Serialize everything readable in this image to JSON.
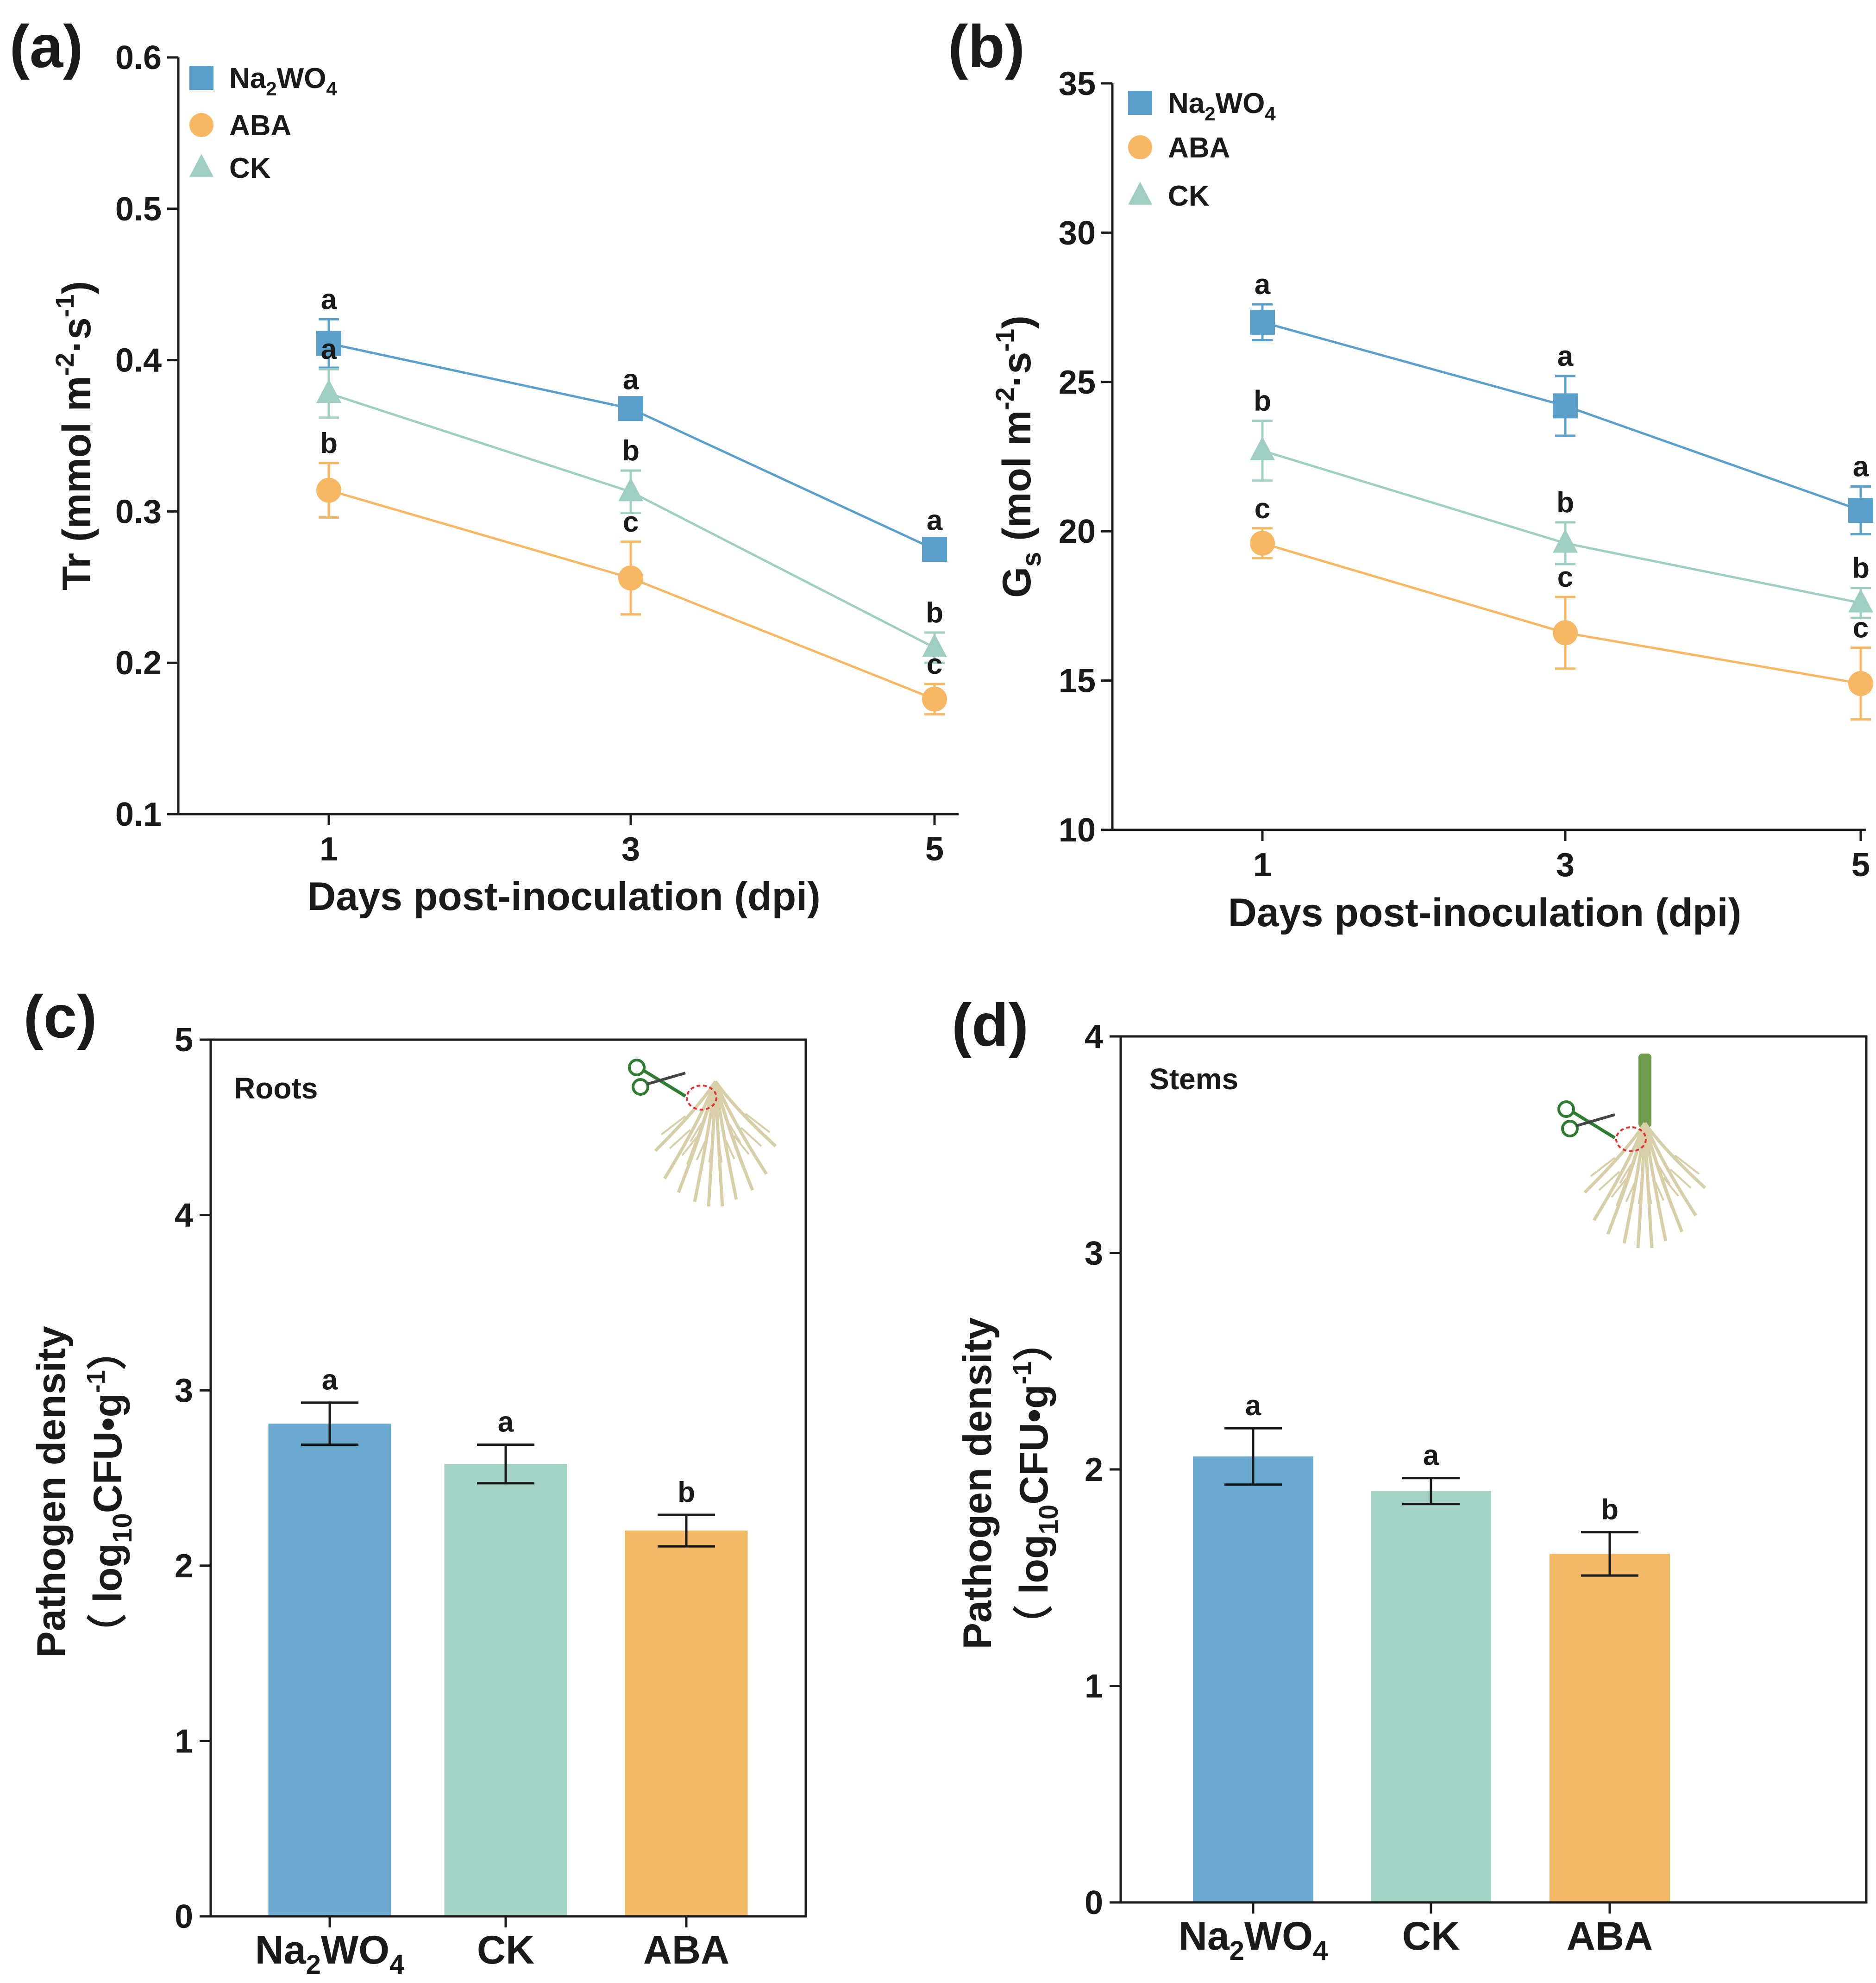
{
  "colors": {
    "na2wo4": "#5b9fcb",
    "aba": "#f7b763",
    "ck": "#9fcfc4",
    "bar_na2wo4": "#6aaad1",
    "bar_ck": "#a3d3c6",
    "bar_aba": "#f3b866",
    "axis": "#1a1a1a"
  },
  "chart_data": [
    {
      "id": "a",
      "panel_label": "(a)",
      "type": "line",
      "ylabel_main": "Tr (mmol m",
      "ylabel_exp1": "-2",
      "ylabel_mid": "·s",
      "ylabel_exp2": "-1",
      "ylabel_end": ")",
      "xlabel": "Days post-inoculation (dpi)",
      "x": [
        1,
        3,
        5
      ],
      "x_tick_labels": [
        "1",
        "3",
        "5"
      ],
      "ylim": [
        0.1,
        0.6
      ],
      "y_ticks": [
        0.1,
        0.2,
        0.3,
        0.4,
        0.5,
        0.6
      ],
      "y_tick_labels": [
        "0.1",
        "0.2",
        "0.3",
        "0.4",
        "0.5",
        "0.6"
      ],
      "legend": [
        {
          "base": "Na",
          "sub1": "2",
          "mid": "WO",
          "sub2": "4",
          "marker": "square",
          "color_key": "na2wo4"
        },
        {
          "base": "ABA",
          "marker": "circle",
          "color_key": "aba"
        },
        {
          "base": "CK",
          "marker": "triangle",
          "color_key": "ck"
        }
      ],
      "series": [
        {
          "name": "Na2WO4",
          "marker": "square",
          "color_key": "na2wo4",
          "values": [
            0.411,
            0.368,
            0.275
          ],
          "errors": [
            0.016,
            0.006,
            0.006
          ],
          "letters": [
            "a",
            "a",
            "a"
          ]
        },
        {
          "name": "CK",
          "marker": "triangle",
          "color_key": "ck",
          "values": [
            0.378,
            0.313,
            0.21
          ],
          "errors": [
            0.016,
            0.014,
            0.01
          ],
          "letters": [
            "a",
            "b",
            "b"
          ]
        },
        {
          "name": "ABA",
          "marker": "circle",
          "color_key": "aba",
          "values": [
            0.314,
            0.256,
            0.176
          ],
          "errors": [
            0.018,
            0.024,
            0.01
          ],
          "letters": [
            "b",
            "c",
            "c"
          ]
        }
      ]
    },
    {
      "id": "b",
      "panel_label": "(b)",
      "type": "line",
      "ylabel_main": "G",
      "ylabel_sub": "s",
      "ylabel_rest": " (mol m",
      "ylabel_exp1": "-2",
      "ylabel_mid": "·s",
      "ylabel_exp2": "-1",
      "ylabel_end": ")",
      "xlabel": "Days post-inoculation (dpi)",
      "x": [
        1,
        3,
        5
      ],
      "x_tick_labels": [
        "1",
        "3",
        "5"
      ],
      "ylim": [
        10,
        35
      ],
      "y_ticks": [
        10,
        15,
        20,
        25,
        30,
        35
      ],
      "y_tick_labels": [
        "10",
        "15",
        "20",
        "25",
        "30",
        "35"
      ],
      "legend": [
        {
          "base": "Na",
          "sub1": "2",
          "mid": "WO",
          "sub2": "4",
          "marker": "square",
          "color_key": "na2wo4"
        },
        {
          "base": "ABA",
          "marker": "circle",
          "color_key": "aba"
        },
        {
          "base": "CK",
          "marker": "triangle",
          "color_key": "ck"
        }
      ],
      "series": [
        {
          "name": "Na2WO4",
          "marker": "square",
          "color_key": "na2wo4",
          "values": [
            27.0,
            24.2,
            20.7
          ],
          "errors": [
            0.6,
            1.0,
            0.8
          ],
          "letters": [
            "a",
            "a",
            "a"
          ]
        },
        {
          "name": "CK",
          "marker": "triangle",
          "color_key": "ck",
          "values": [
            22.7,
            19.6,
            17.6
          ],
          "errors": [
            1.0,
            0.7,
            0.5
          ],
          "letters": [
            "b",
            "b",
            "b"
          ]
        },
        {
          "name": "ABA",
          "marker": "circle",
          "color_key": "aba",
          "values": [
            19.6,
            16.6,
            14.9
          ],
          "errors": [
            0.5,
            1.2,
            1.2
          ],
          "letters": [
            "c",
            "c",
            "c"
          ]
        }
      ]
    },
    {
      "id": "c",
      "panel_label": "(c)",
      "type": "bar",
      "tissue_label": "Roots",
      "ylabel_line1": "Pathogen density",
      "ylabel_line2_pre": "（ log",
      "ylabel_line2_sub": "10",
      "ylabel_line2_mid": "CFU•g",
      "ylabel_line2_exp": "-1",
      "ylabel_line2_end": "）",
      "ylim": [
        0,
        5
      ],
      "y_ticks": [
        0,
        1,
        2,
        3,
        4,
        5
      ],
      "y_tick_labels": [
        "0",
        "1",
        "2",
        "3",
        "4",
        "5"
      ],
      "categories": [
        {
          "base": "Na",
          "sub1": "2",
          "mid": "WO",
          "sub2": "4"
        },
        {
          "base": "CK"
        },
        {
          "base": "ABA"
        }
      ],
      "bar_color_keys": [
        "bar_na2wo4",
        "bar_ck",
        "bar_aba"
      ],
      "values": [
        2.81,
        2.58,
        2.2
      ],
      "errors": [
        0.12,
        0.11,
        0.09
      ],
      "letters": [
        "a",
        "a",
        "b"
      ]
    },
    {
      "id": "d",
      "panel_label": "(d)",
      "type": "bar",
      "tissue_label": "Stems",
      "ylabel_line1": "Pathogen density",
      "ylabel_line2_pre": "（ log",
      "ylabel_line2_sub": "10",
      "ylabel_line2_mid": "CFU•g",
      "ylabel_line2_exp": "-1",
      "ylabel_line2_end": "）",
      "ylim": [
        0,
        4
      ],
      "y_ticks": [
        0,
        1,
        2,
        3,
        4
      ],
      "y_tick_labels": [
        "0",
        "1",
        "2",
        "3",
        "4"
      ],
      "categories": [
        {
          "base": "Na",
          "sub1": "2",
          "mid": "WO",
          "sub2": "4"
        },
        {
          "base": "CK"
        },
        {
          "base": "ABA"
        }
      ],
      "bar_color_keys": [
        "bar_na2wo4",
        "bar_ck",
        "bar_aba"
      ],
      "values": [
        2.06,
        1.9,
        1.61
      ],
      "errors": [
        0.13,
        0.06,
        0.1
      ],
      "letters": [
        "a",
        "a",
        "b"
      ]
    }
  ]
}
